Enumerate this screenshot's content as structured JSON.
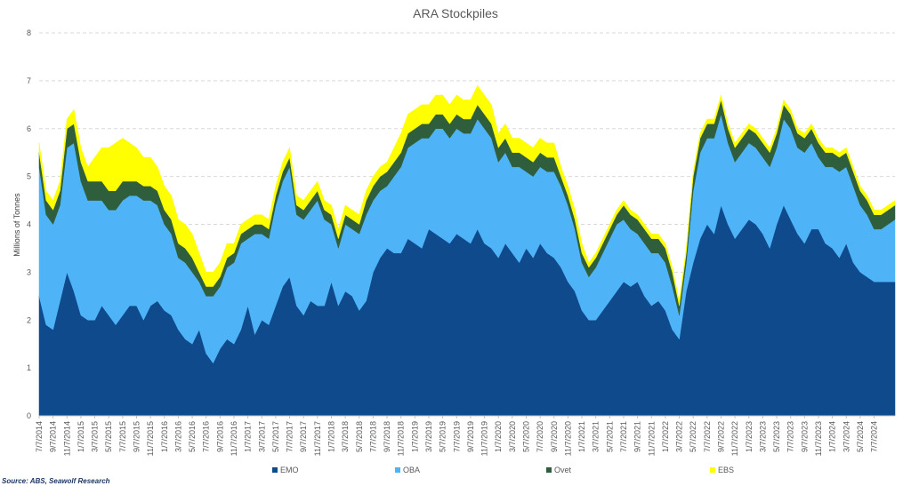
{
  "chart_data": {
    "type": "area",
    "stacked": true,
    "title": "ARA Stockpiles",
    "ylabel": "Millions of Tonnes",
    "ylim": [
      0,
      8
    ],
    "yticks": [
      0,
      1,
      2,
      3,
      4,
      5,
      6,
      7,
      8
    ],
    "grid": "horizontal dashed",
    "legend_position": "bottom",
    "source": "Source: ABS, Seawolf Research",
    "x_tick_labels": [
      "7/7/2014",
      "9/7/2014",
      "11/7/2014",
      "1/7/2015",
      "3/7/2015",
      "5/7/2015",
      "7/7/2015",
      "9/7/2015",
      "11/7/2015",
      "1/7/2016",
      "3/7/2016",
      "5/7/2016",
      "7/7/2016",
      "9/7/2016",
      "11/7/2016",
      "1/7/2017",
      "3/7/2017",
      "5/7/2017",
      "7/7/2017",
      "9/7/2017",
      "11/7/2017",
      "1/7/2018",
      "3/7/2018",
      "5/7/2018",
      "7/7/2018",
      "9/7/2018",
      "11/7/2018",
      "1/7/2019",
      "3/7/2019",
      "5/7/2019",
      "7/7/2019",
      "9/7/2019",
      "11/7/2019",
      "1/7/2020",
      "3/7/2020",
      "5/7/2020",
      "7/7/2020",
      "9/7/2020",
      "11/7/2020",
      "1/7/2021",
      "3/7/2021",
      "5/7/2021",
      "7/7/2021",
      "9/7/2021",
      "11/7/2021",
      "1/7/2022",
      "3/7/2022",
      "5/7/2022",
      "7/7/2022",
      "9/7/2022",
      "11/7/2022",
      "1/7/2023",
      "3/7/2023",
      "5/7/2023",
      "7/7/2023",
      "9/7/2023",
      "11/7/2023",
      "1/7/2024",
      "3/7/2024",
      "5/7/2024",
      "7/7/2024"
    ],
    "x": [
      "2014-07",
      "2014-08",
      "2014-09",
      "2014-10",
      "2014-11",
      "2014-12",
      "2015-01",
      "2015-02",
      "2015-03",
      "2015-04",
      "2015-05",
      "2015-06",
      "2015-07",
      "2015-08",
      "2015-09",
      "2015-10",
      "2015-11",
      "2015-12",
      "2016-01",
      "2016-02",
      "2016-03",
      "2016-04",
      "2016-05",
      "2016-06",
      "2016-07",
      "2016-08",
      "2016-09",
      "2016-10",
      "2016-11",
      "2016-12",
      "2017-01",
      "2017-02",
      "2017-03",
      "2017-04",
      "2017-05",
      "2017-06",
      "2017-07",
      "2017-08",
      "2017-09",
      "2017-10",
      "2017-11",
      "2017-12",
      "2018-01",
      "2018-02",
      "2018-03",
      "2018-04",
      "2018-05",
      "2018-06",
      "2018-07",
      "2018-08",
      "2018-09",
      "2018-10",
      "2018-11",
      "2018-12",
      "2019-01",
      "2019-02",
      "2019-03",
      "2019-04",
      "2019-05",
      "2019-06",
      "2019-07",
      "2019-08",
      "2019-09",
      "2019-10",
      "2019-11",
      "2019-12",
      "2020-01",
      "2020-02",
      "2020-03",
      "2020-04",
      "2020-05",
      "2020-06",
      "2020-07",
      "2020-08",
      "2020-09",
      "2020-10",
      "2020-11",
      "2020-12",
      "2021-01",
      "2021-02",
      "2021-03",
      "2021-04",
      "2021-05",
      "2021-06",
      "2021-07",
      "2021-08",
      "2021-09",
      "2021-10",
      "2021-11",
      "2021-12",
      "2022-01",
      "2022-02",
      "2022-03",
      "2022-04",
      "2022-05",
      "2022-06",
      "2022-07",
      "2022-08",
      "2022-09",
      "2022-10",
      "2022-11",
      "2022-12",
      "2023-01",
      "2023-02",
      "2023-03",
      "2023-04",
      "2023-05",
      "2023-06",
      "2023-07",
      "2023-08",
      "2023-09",
      "2023-10",
      "2023-11",
      "2023-12",
      "2024-01",
      "2024-02",
      "2024-03",
      "2024-04",
      "2024-05",
      "2024-06",
      "2024-07",
      "2024-08",
      "2024-09",
      "2024-10"
    ],
    "series": [
      {
        "name": "EMO",
        "color": "#0e4a8c",
        "values": [
          2.5,
          1.9,
          1.8,
          2.4,
          3.0,
          2.6,
          2.1,
          2.0,
          2.0,
          2.3,
          2.1,
          1.9,
          2.1,
          2.3,
          2.3,
          2.0,
          2.3,
          2.4,
          2.2,
          2.1,
          1.8,
          1.6,
          1.5,
          1.8,
          1.3,
          1.1,
          1.4,
          1.6,
          1.5,
          1.8,
          2.3,
          1.7,
          2.0,
          1.9,
          2.3,
          2.7,
          2.9,
          2.3,
          2.1,
          2.4,
          2.3,
          2.3,
          2.8,
          2.3,
          2.6,
          2.5,
          2.2,
          2.4,
          3.0,
          3.3,
          3.5,
          3.4,
          3.4,
          3.7,
          3.6,
          3.5,
          3.9,
          3.8,
          3.7,
          3.6,
          3.8,
          3.7,
          3.6,
          3.9,
          3.6,
          3.5,
          3.3,
          3.6,
          3.4,
          3.2,
          3.5,
          3.3,
          3.6,
          3.4,
          3.3,
          3.1,
          2.8,
          2.6,
          2.2,
          2.0,
          2.0,
          2.2,
          2.4,
          2.6,
          2.8,
          2.7,
          2.8,
          2.5,
          2.3,
          2.4,
          2.2,
          1.8,
          1.6,
          2.6,
          3.2,
          3.7,
          4.0,
          3.8,
          4.4,
          4.0,
          3.7,
          3.9,
          4.1,
          4.0,
          3.8,
          3.5,
          4.0,
          4.4,
          4.1,
          3.8,
          3.6,
          3.9,
          3.9,
          3.6,
          3.5,
          3.3,
          3.6,
          3.2,
          3.0,
          2.9,
          2.8,
          2.8,
          2.8,
          2.8
        ]
      },
      {
        "name": "OBA",
        "color": "#4fb4f7",
        "values": [
          2.7,
          2.3,
          2.2,
          2.0,
          2.6,
          3.1,
          2.8,
          2.5,
          2.5,
          2.2,
          2.2,
          2.4,
          2.4,
          2.3,
          2.3,
          2.5,
          2.2,
          2.0,
          1.8,
          1.7,
          1.5,
          1.6,
          1.5,
          1.0,
          1.2,
          1.4,
          1.3,
          1.5,
          1.7,
          1.8,
          1.4,
          2.1,
          1.8,
          1.8,
          2.1,
          2.2,
          2.3,
          1.9,
          2.0,
          1.9,
          2.2,
          1.8,
          1.2,
          1.2,
          1.4,
          1.4,
          1.6,
          1.8,
          1.5,
          1.4,
          1.3,
          1.6,
          1.8,
          1.9,
          2.1,
          2.3,
          1.9,
          2.2,
          2.3,
          2.2,
          2.2,
          2.2,
          2.3,
          2.3,
          2.4,
          2.3,
          2.0,
          1.9,
          1.8,
          2.0,
          1.6,
          1.7,
          1.6,
          1.7,
          1.8,
          1.7,
          1.6,
          1.3,
          1.0,
          0.9,
          1.1,
          1.2,
          1.3,
          1.4,
          1.3,
          1.2,
          1.0,
          1.1,
          1.1,
          1.0,
          1.0,
          0.9,
          0.5,
          0.6,
          1.5,
          1.8,
          1.8,
          2.0,
          1.9,
          1.7,
          1.6,
          1.6,
          1.6,
          1.6,
          1.6,
          1.7,
          1.6,
          1.8,
          1.9,
          1.8,
          1.9,
          1.8,
          1.5,
          1.6,
          1.7,
          1.8,
          1.6,
          1.6,
          1.4,
          1.3,
          1.1,
          1.1,
          1.2,
          1.3
        ]
      },
      {
        "name": "Ovet",
        "color": "#2f5e3c",
        "values": [
          0.3,
          0.3,
          0.3,
          0.3,
          0.4,
          0.4,
          0.4,
          0.4,
          0.4,
          0.4,
          0.4,
          0.4,
          0.4,
          0.3,
          0.3,
          0.3,
          0.3,
          0.3,
          0.3,
          0.3,
          0.3,
          0.3,
          0.3,
          0.2,
          0.2,
          0.2,
          0.2,
          0.2,
          0.2,
          0.2,
          0.2,
          0.2,
          0.2,
          0.2,
          0.2,
          0.2,
          0.2,
          0.2,
          0.2,
          0.2,
          0.2,
          0.2,
          0.2,
          0.2,
          0.2,
          0.2,
          0.2,
          0.3,
          0.3,
          0.3,
          0.3,
          0.3,
          0.3,
          0.3,
          0.3,
          0.3,
          0.3,
          0.3,
          0.3,
          0.3,
          0.3,
          0.3,
          0.3,
          0.3,
          0.3,
          0.3,
          0.3,
          0.3,
          0.3,
          0.3,
          0.3,
          0.3,
          0.3,
          0.3,
          0.3,
          0.2,
          0.2,
          0.2,
          0.2,
          0.2,
          0.2,
          0.2,
          0.2,
          0.2,
          0.3,
          0.3,
          0.3,
          0.3,
          0.3,
          0.3,
          0.3,
          0.3,
          0.2,
          0.2,
          0.3,
          0.3,
          0.3,
          0.3,
          0.3,
          0.3,
          0.3,
          0.3,
          0.3,
          0.3,
          0.3,
          0.3,
          0.3,
          0.3,
          0.3,
          0.3,
          0.3,
          0.3,
          0.3,
          0.3,
          0.3,
          0.3,
          0.3,
          0.3,
          0.3,
          0.3,
          0.3,
          0.3,
          0.3,
          0.3
        ]
      },
      {
        "name": "EBS",
        "color": "#ffff00",
        "values": [
          0.2,
          0.2,
          0.2,
          0.2,
          0.2,
          0.3,
          0.3,
          0.3,
          0.5,
          0.7,
          0.9,
          1.0,
          0.9,
          0.8,
          0.7,
          0.6,
          0.6,
          0.5,
          0.5,
          0.5,
          0.5,
          0.5,
          0.5,
          0.4,
          0.3,
          0.3,
          0.3,
          0.3,
          0.2,
          0.2,
          0.2,
          0.2,
          0.2,
          0.2,
          0.2,
          0.2,
          0.2,
          0.2,
          0.2,
          0.2,
          0.2,
          0.2,
          0.2,
          0.2,
          0.2,
          0.2,
          0.2,
          0.2,
          0.2,
          0.2,
          0.2,
          0.3,
          0.4,
          0.4,
          0.4,
          0.4,
          0.4,
          0.4,
          0.4,
          0.4,
          0.4,
          0.4,
          0.4,
          0.4,
          0.4,
          0.4,
          0.3,
          0.3,
          0.3,
          0.3,
          0.3,
          0.3,
          0.3,
          0.3,
          0.3,
          0.2,
          0.2,
          0.2,
          0.2,
          0.1,
          0.1,
          0.1,
          0.1,
          0.1,
          0.1,
          0.1,
          0.1,
          0.1,
          0.1,
          0.1,
          0.1,
          0.1,
          0.1,
          0.1,
          0.1,
          0.1,
          0.1,
          0.1,
          0.1,
          0.1,
          0.1,
          0.1,
          0.1,
          0.1,
          0.1,
          0.1,
          0.1,
          0.1,
          0.1,
          0.1,
          0.1,
          0.1,
          0.1,
          0.1,
          0.1,
          0.1,
          0.1,
          0.1,
          0.1,
          0.1,
          0.1,
          0.1,
          0.1,
          0.1
        ]
      }
    ]
  }
}
